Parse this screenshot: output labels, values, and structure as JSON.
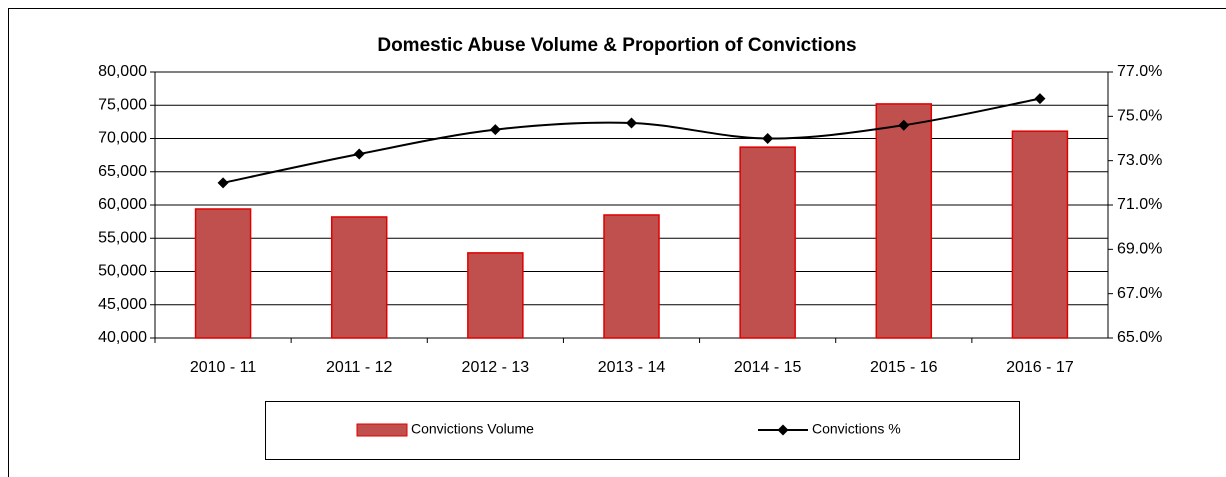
{
  "chart_data": {
    "type": "combo",
    "title": "Domestic Abuse Volume & Proportion of Convictions",
    "categories": [
      "2010 - 11",
      "2011 - 12",
      "2012 - 13",
      "2013 - 14",
      "2014 - 15",
      "2015 - 16",
      "2016 - 17"
    ],
    "series": [
      {
        "name": "Convictions Volume",
        "type": "bar",
        "color": "#c0504d",
        "values": [
          59400,
          58200,
          52800,
          58500,
          68700,
          75200,
          71100
        ]
      },
      {
        "name": "Convictions %",
        "type": "line",
        "axis": "y2",
        "color": "#000000",
        "values": [
          72.0,
          73.3,
          74.4,
          74.7,
          74.0,
          74.6,
          75.8
        ]
      }
    ],
    "ylim": [
      40000,
      80000
    ],
    "yticks": [
      {
        "value": 40000,
        "label": "40,000"
      },
      {
        "value": 45000,
        "label": "45,000"
      },
      {
        "value": 50000,
        "label": "50,000"
      },
      {
        "value": 55000,
        "label": "55,000"
      },
      {
        "value": 60000,
        "label": "60,000"
      },
      {
        "value": 65000,
        "label": "65,000"
      },
      {
        "value": 70000,
        "label": "70,000"
      },
      {
        "value": 75000,
        "label": "75,000"
      },
      {
        "value": 80000,
        "label": "80,000"
      }
    ],
    "y2lim": [
      65,
      77
    ],
    "y2ticks": [
      {
        "value": 65,
        "label": "65.0%"
      },
      {
        "value": 67,
        "label": "67.0%"
      },
      {
        "value": 69,
        "label": "69.0%"
      },
      {
        "value": 71,
        "label": "71.0%"
      },
      {
        "value": 73,
        "label": "73.0%"
      },
      {
        "value": 75,
        "label": "75.0%"
      },
      {
        "value": 77,
        "label": "77.0%"
      }
    ],
    "grid": true
  }
}
